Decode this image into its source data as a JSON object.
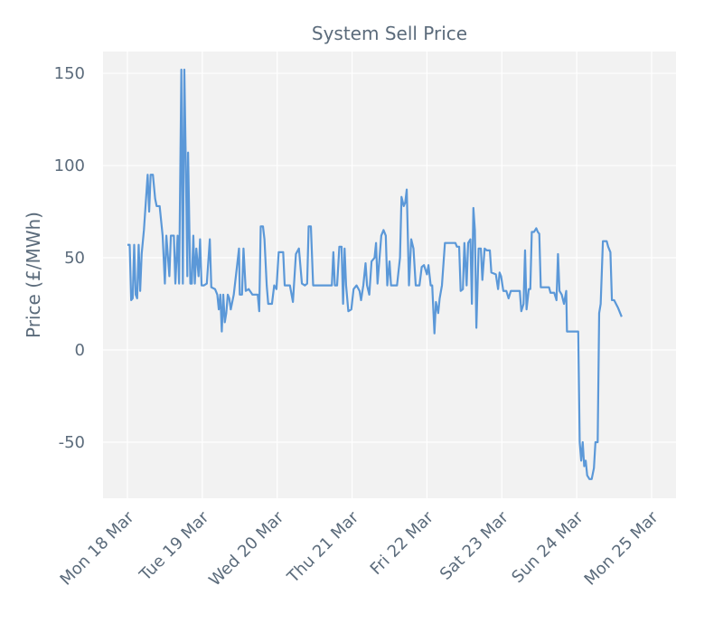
{
  "chart_data": {
    "type": "line",
    "title": "System Sell Price",
    "ylabel": "Price (£/MWh)",
    "series": [
      {
        "name": "System Sell Price",
        "color": "#5b98d8",
        "x": [
          0.0,
          0.03,
          0.05,
          0.07,
          0.09,
          0.11,
          0.13,
          0.15,
          0.17,
          0.19,
          0.22,
          0.27,
          0.29,
          0.31,
          0.34,
          0.37,
          0.39,
          0.43,
          0.47,
          0.5,
          0.52,
          0.56,
          0.58,
          0.62,
          0.64,
          0.67,
          0.69,
          0.72,
          0.74,
          0.76,
          0.78,
          0.8,
          0.81,
          0.84,
          0.86,
          0.88,
          0.9,
          0.92,
          0.95,
          0.97,
          0.99,
          1.02,
          1.06,
          1.1,
          1.12,
          1.17,
          1.2,
          1.22,
          1.24,
          1.26,
          1.28,
          1.3,
          1.32,
          1.34,
          1.36,
          1.38,
          1.42,
          1.49,
          1.5,
          1.53,
          1.55,
          1.58,
          1.62,
          1.67,
          1.74,
          1.76,
          1.78,
          1.81,
          1.83,
          1.86,
          1.88,
          1.93,
          1.96,
          1.99,
          2.02,
          2.08,
          2.1,
          2.17,
          2.21,
          2.25,
          2.29,
          2.33,
          2.37,
          2.4,
          2.42,
          2.45,
          2.48,
          2.55,
          2.65,
          2.73,
          2.75,
          2.77,
          2.8,
          2.83,
          2.86,
          2.88,
          2.9,
          2.92,
          2.95,
          2.99,
          3.02,
          3.06,
          3.1,
          3.12,
          3.15,
          3.18,
          3.2,
          3.23,
          3.26,
          3.3,
          3.32,
          3.34,
          3.39,
          3.42,
          3.45,
          3.47,
          3.5,
          3.52,
          3.58,
          3.6,
          3.64,
          3.66,
          3.69,
          3.71,
          3.73,
          3.76,
          3.79,
          3.82,
          3.85,
          3.9,
          3.93,
          3.96,
          4.0,
          4.02,
          4.05,
          4.07,
          4.1,
          4.12,
          4.15,
          4.17,
          4.2,
          4.24,
          4.3,
          4.38,
          4.4,
          4.43,
          4.45,
          4.48,
          4.5,
          4.53,
          4.55,
          4.58,
          4.6,
          4.62,
          4.64,
          4.66,
          4.69,
          4.72,
          4.74,
          4.77,
          4.8,
          4.84,
          4.86,
          4.92,
          4.95,
          4.97,
          4.99,
          5.02,
          5.06,
          5.09,
          5.12,
          5.2,
          5.24,
          5.26,
          5.29,
          5.31,
          5.33,
          5.36,
          5.38,
          5.4,
          5.43,
          5.46,
          5.48,
          5.5,
          5.52,
          5.55,
          5.58,
          5.63,
          5.65,
          5.7,
          5.73,
          5.75,
          5.77,
          5.8,
          5.83,
          5.86,
          5.87,
          5.9,
          5.99,
          6.02,
          6.04,
          6.06,
          6.08,
          6.1,
          6.12,
          6.14,
          6.17,
          6.2,
          6.23,
          6.25,
          6.28,
          6.3,
          6.32,
          6.35,
          6.38,
          6.4,
          6.42,
          6.45,
          6.47,
          6.5,
          6.55,
          6.58,
          6.6
        ],
        "values": [
          57,
          57,
          27,
          28,
          57,
          30,
          28,
          57,
          32,
          52,
          65,
          95,
          75,
          95,
          95,
          82,
          78,
          78,
          62,
          36,
          62,
          40,
          62,
          62,
          36,
          62,
          36,
          152,
          36,
          152,
          100,
          40,
          107,
          36,
          36,
          62,
          36,
          55,
          40,
          60,
          35,
          35,
          36,
          60,
          34,
          33,
          30,
          22,
          30,
          10,
          30,
          15,
          20,
          30,
          28,
          22,
          30,
          55,
          30,
          30,
          55,
          32,
          33,
          30,
          30,
          21,
          67,
          67,
          60,
          35,
          25,
          25,
          35,
          33,
          53,
          53,
          35,
          35,
          26,
          52,
          55,
          36,
          35,
          36,
          67,
          67,
          35,
          35,
          35,
          35,
          53,
          35,
          35,
          56,
          56,
          25,
          55,
          35,
          21,
          22,
          33,
          35,
          32,
          27,
          35,
          47,
          35,
          30,
          48,
          50,
          58,
          36,
          62,
          65,
          62,
          35,
          48,
          35,
          35,
          35,
          50,
          83,
          78,
          80,
          87,
          35,
          60,
          55,
          35,
          35,
          45,
          46,
          41,
          46,
          35,
          35,
          9,
          26,
          20,
          28,
          35,
          58,
          58,
          58,
          56,
          56,
          32,
          33,
          58,
          35,
          58,
          60,
          25,
          77,
          65,
          12,
          55,
          55,
          38,
          55,
          54,
          54,
          42,
          41,
          33,
          42,
          40,
          32,
          32,
          28,
          32,
          32,
          32,
          21,
          25,
          54,
          22,
          33,
          33,
          64,
          64,
          66,
          64,
          63,
          34,
          34,
          34,
          34,
          31,
          31,
          27,
          52,
          32,
          30,
          25,
          32,
          10,
          10,
          10,
          10,
          -50,
          -60,
          -50,
          -63,
          -60,
          -68,
          -70,
          -70,
          -64,
          -50,
          -50,
          20,
          25,
          59,
          59,
          59,
          56,
          53,
          27,
          27,
          23,
          20,
          18
        ]
      }
    ],
    "xlim": [
      -0.326,
      7.326
    ],
    "xticks": [
      {
        "value": 0,
        "label": "Mon 18 Mar"
      },
      {
        "value": 1,
        "label": "Tue 19 Mar"
      },
      {
        "value": 2,
        "label": "Wed 20 Mar"
      },
      {
        "value": 3,
        "label": "Thu 21 Mar"
      },
      {
        "value": 4,
        "label": "Fri 22 Mar"
      },
      {
        "value": 5,
        "label": "Sat 23 Mar"
      },
      {
        "value": 6,
        "label": "Sun 24 Mar"
      },
      {
        "value": 7,
        "label": "Mon 25 Mar"
      }
    ],
    "ylim": [
      -80.4,
      161.8
    ],
    "yticks": [
      -50,
      0,
      50,
      100,
      150
    ],
    "grid": true
  }
}
